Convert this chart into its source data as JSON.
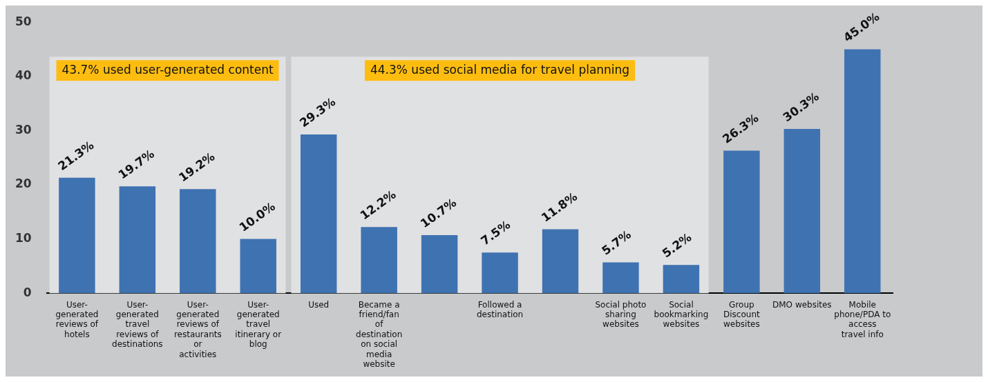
{
  "chart_data": {
    "type": "bar",
    "categories": [
      "User-generated reviews of hotels",
      "User-generated travel reviews of destinations",
      "User-generated reviews of restaurants or activities",
      "User-generated travel itinerary or blog",
      "Used",
      "Became a friend/fan of destination on social media website",
      null,
      "Followed a destination",
      null,
      "Social photo sharing websites",
      "Social bookmarking websites",
      "Group Discount websites",
      "DMO websites",
      "Mobile phone/PDA to access travel info"
    ],
    "values": [
      21.3,
      19.7,
      19.2,
      10.0,
      29.3,
      12.2,
      10.7,
      7.5,
      11.8,
      5.7,
      5.2,
      26.3,
      30.3,
      45.0
    ],
    "value_labels": [
      "21.3%",
      "19.7%",
      "19.2%",
      "10.0%",
      "29.3%",
      "12.2%",
      "10.7%",
      "7.5%",
      "11.8%",
      "5.7%",
      "5.2%",
      "26.3%",
      "30.3%",
      "45.0%"
    ],
    "color": "#3f72b1",
    "ylim": [
      0,
      50
    ],
    "yticks": [
      0,
      10,
      20,
      30,
      40,
      50
    ],
    "grid": false,
    "legend": false,
    "bands": [
      {
        "axis": "x",
        "from": "User-generated reviews of hotels",
        "to": "User-generated travel itinerary or blog",
        "label": "43.7% used user-generated content",
        "color": "#e0e1e3"
      },
      {
        "axis": "x",
        "from": "Used",
        "to": "Social bookmarking websites",
        "label": "44.3% used social media for travel planning",
        "color": "#e0e1e3"
      }
    ]
  }
}
